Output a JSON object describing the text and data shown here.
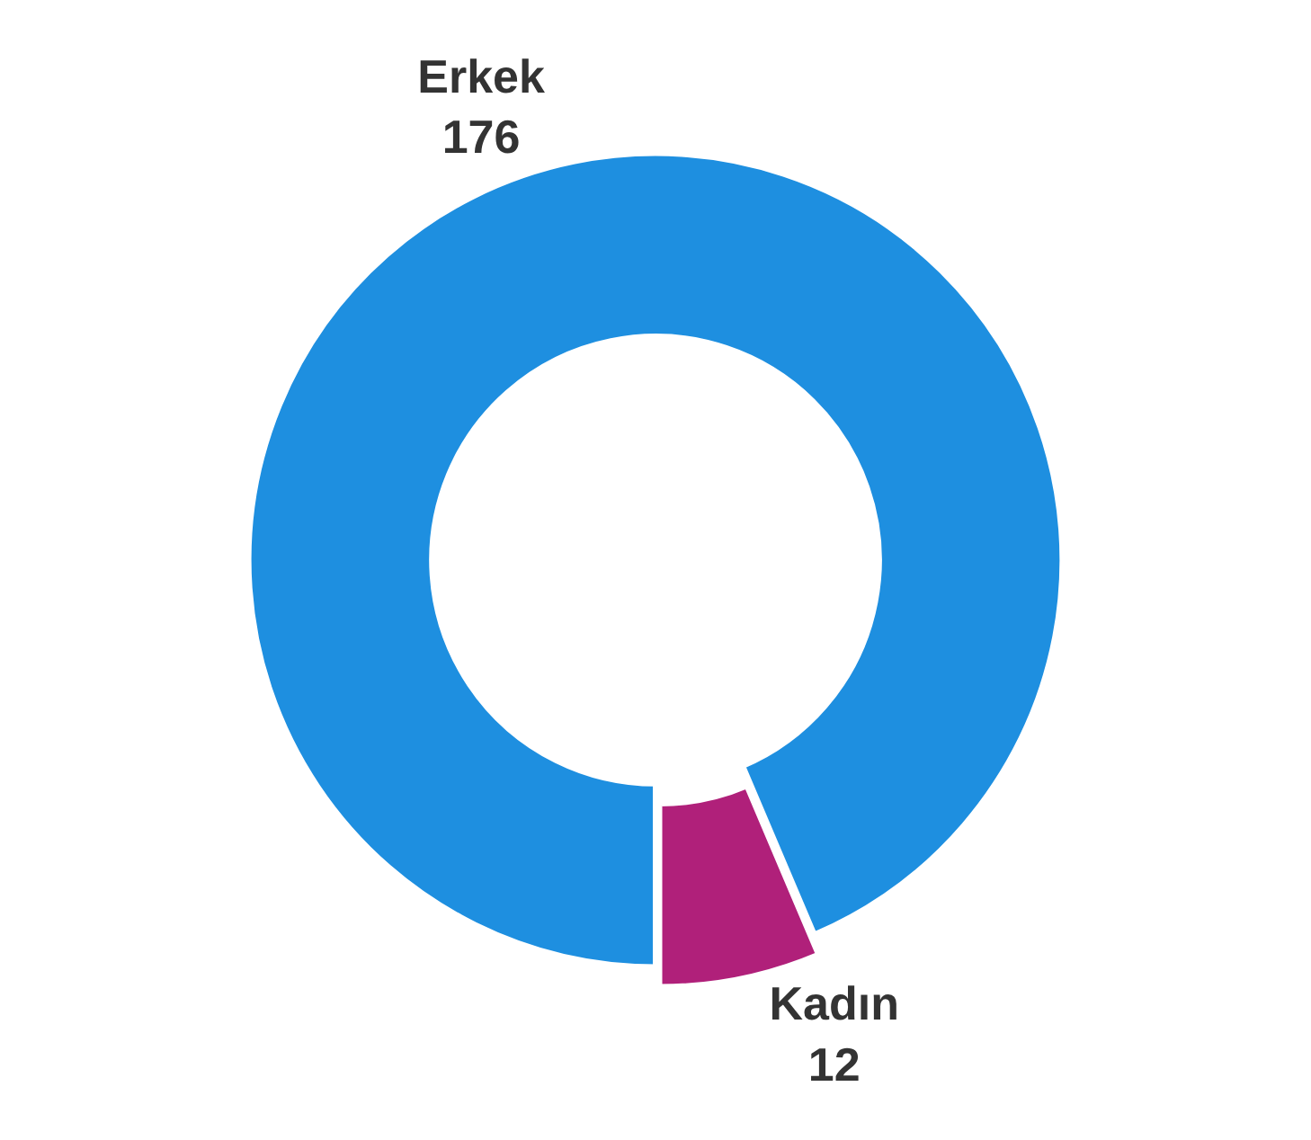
{
  "chart_data": {
    "type": "donut",
    "categories": [
      "Erkek",
      "Kadın"
    ],
    "values": [
      176,
      12
    ],
    "colors": [
      "#1e8fe0",
      "#b0207a"
    ],
    "data_labels": true,
    "legend": false
  }
}
